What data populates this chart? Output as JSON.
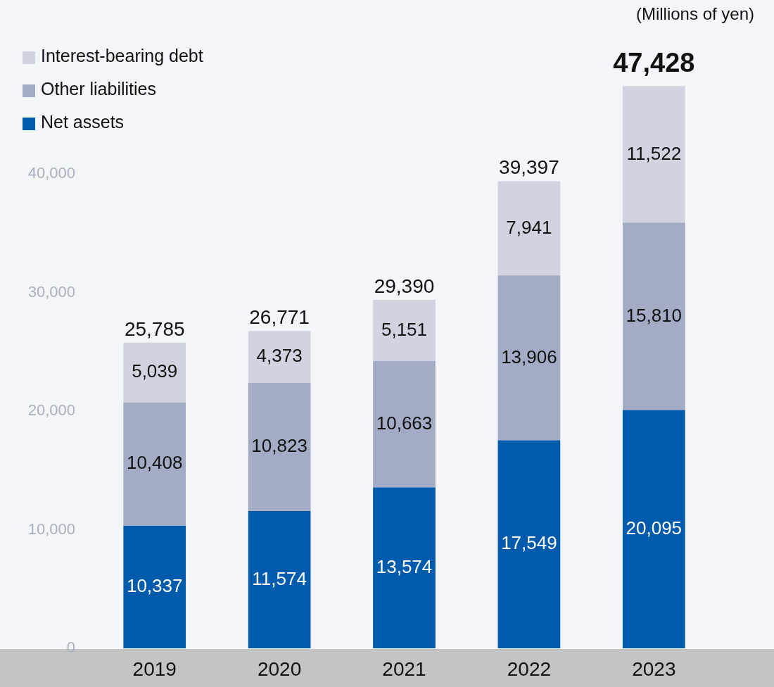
{
  "chart_data": {
    "type": "bar",
    "stacked": true,
    "categories": [
      "2019",
      "2020",
      "2021",
      "2022",
      "2023"
    ],
    "series": [
      {
        "name": "Net assets",
        "color": "#005bac",
        "values": [
          10337,
          11574,
          13574,
          17549,
          20095
        ],
        "value_labels": [
          "10,337",
          "11,574",
          "13,574",
          "17,549",
          "20,095"
        ]
      },
      {
        "name": "Other liabilities",
        "color": "#a3acc4",
        "values": [
          10408,
          10823,
          10663,
          13906,
          15810
        ],
        "value_labels": [
          "10,408",
          "10,823",
          "10,663",
          "13,906",
          "15,810"
        ]
      },
      {
        "name": "Interest-bearing debt",
        "color": "#d0d4e1",
        "values": [
          5039,
          4373,
          5151,
          7941,
          11522
        ],
        "value_labels": [
          "5,039",
          "4,373",
          "5,151",
          "7,941",
          "11,522"
        ]
      }
    ],
    "ylim": [
      0,
      54500
    ],
    "yticks": [
      {
        "value": 0,
        "label": "0"
      },
      {
        "value": 10000,
        "label": "10,000"
      },
      {
        "value": 20000,
        "label": "20,000"
      },
      {
        "value": 30000,
        "label": "30,000"
      },
      {
        "value": 40000,
        "label": "40,000"
      }
    ],
    "grid": false,
    "legend": "top left",
    "totals": [
      "25,785",
      "26,771",
      "29,390",
      "39,397",
      "47,428"
    ],
    "annotations": [
      "(Millions of yen)"
    ]
  }
}
